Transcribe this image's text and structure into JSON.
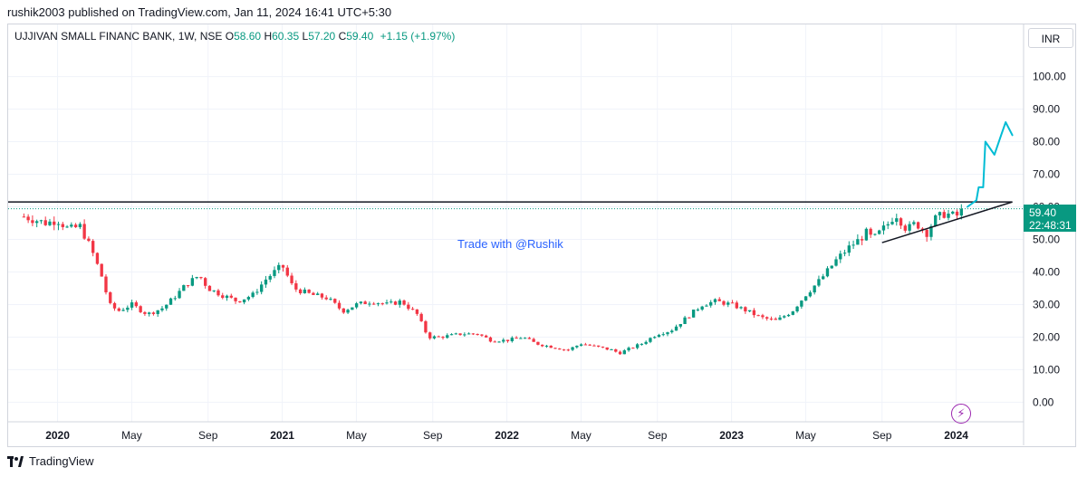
{
  "caption": "rushik2003 published on TradingView.com, Jan 11, 2024 16:41 UTC+5:30",
  "legend": {
    "symbol": "UJJIVAN SMALL FINANC BANK, 1W, NSE",
    "o_label": "O",
    "o_value": "58.60",
    "h_label": "H",
    "h_value": "60.35",
    "l_label": "L",
    "l_value": "57.20",
    "c_label": "C",
    "c_value": "59.40",
    "change": "+1.15 (+1.97%)"
  },
  "currency": "INR",
  "price_label": {
    "price": "59.40",
    "countdown": "22:48:31"
  },
  "watermark": "Trade with @Rushik",
  "footer": {
    "brand": "TradingView"
  },
  "colors": {
    "up": "#089981",
    "down": "#f23645",
    "drawing": "#00bcd4",
    "accent": "#9c27b0"
  },
  "icons": {
    "footer_logo": "tradingview-logo-icon",
    "alert_button": "lightning-bolt-icon"
  },
  "chart_data": {
    "type": "candlestick",
    "y_ticks": [
      "100.00",
      "90.00",
      "80.00",
      "70.00",
      "60.00",
      "50.00",
      "40.00",
      "30.00",
      "20.00",
      "10.00",
      "0.00"
    ],
    "y_tick_values": [
      100,
      90,
      80,
      70,
      60,
      50,
      40,
      30,
      20,
      10,
      0
    ],
    "ylim": [
      -6,
      116
    ],
    "x_ticks": [
      {
        "label": "2020",
        "year": true,
        "t": 2020.0
      },
      {
        "label": "May",
        "year": false,
        "t": 2020.33
      },
      {
        "label": "Sep",
        "year": false,
        "t": 2020.67
      },
      {
        "label": "2021",
        "year": true,
        "t": 2021.0
      },
      {
        "label": "May",
        "year": false,
        "t": 2021.33
      },
      {
        "label": "Sep",
        "year": false,
        "t": 2021.67
      },
      {
        "label": "2022",
        "year": true,
        "t": 2022.0
      },
      {
        "label": "May",
        "year": false,
        "t": 2022.33
      },
      {
        "label": "Sep",
        "year": false,
        "t": 2022.67
      },
      {
        "label": "2023",
        "year": true,
        "t": 2023.0
      },
      {
        "label": "May",
        "year": false,
        "t": 2023.33
      },
      {
        "label": "Sep",
        "year": false,
        "t": 2023.67
      },
      {
        "label": "2024",
        "year": true,
        "t": 2024.0
      }
    ],
    "xlim": [
      2019.78,
      2024.3
    ],
    "last_close": 59.4,
    "close_series": [
      [
        2019.85,
        57
      ],
      [
        2019.9,
        56
      ],
      [
        2019.95,
        55
      ],
      [
        2020.0,
        56
      ],
      [
        2020.05,
        53
      ],
      [
        2020.1,
        54
      ],
      [
        2020.15,
        47
      ],
      [
        2020.2,
        38
      ],
      [
        2020.23,
        30
      ],
      [
        2020.27,
        28
      ],
      [
        2020.33,
        30
      ],
      [
        2020.4,
        27
      ],
      [
        2020.47,
        29
      ],
      [
        2020.53,
        33
      ],
      [
        2020.57,
        36
      ],
      [
        2020.63,
        39
      ],
      [
        2020.67,
        35
      ],
      [
        2020.73,
        33
      ],
      [
        2020.8,
        31
      ],
      [
        2020.87,
        33
      ],
      [
        2020.93,
        38
      ],
      [
        2021.0,
        42
      ],
      [
        2021.05,
        35
      ],
      [
        2021.13,
        33
      ],
      [
        2021.2,
        32
      ],
      [
        2021.27,
        28
      ],
      [
        2021.33,
        30
      ],
      [
        2021.4,
        31
      ],
      [
        2021.47,
        30
      ],
      [
        2021.53,
        31
      ],
      [
        2021.6,
        27
      ],
      [
        2021.65,
        20
      ],
      [
        2021.7,
        20
      ],
      [
        2021.8,
        21
      ],
      [
        2021.87,
        21
      ],
      [
        2021.93,
        19
      ],
      [
        2022.0,
        19
      ],
      [
        2022.07,
        20
      ],
      [
        2022.13,
        18
      ],
      [
        2022.2,
        17
      ],
      [
        2022.27,
        16
      ],
      [
        2022.33,
        18
      ],
      [
        2022.4,
        17
      ],
      [
        2022.47,
        16
      ],
      [
        2022.5,
        15
      ],
      [
        2022.53,
        16
      ],
      [
        2022.6,
        18
      ],
      [
        2022.67,
        21
      ],
      [
        2022.73,
        22
      ],
      [
        2022.8,
        26
      ],
      [
        2022.87,
        30
      ],
      [
        2022.93,
        31
      ],
      [
        2023.0,
        30
      ],
      [
        2023.07,
        28
      ],
      [
        2023.13,
        26
      ],
      [
        2023.2,
        25
      ],
      [
        2023.27,
        28
      ],
      [
        2023.33,
        33
      ],
      [
        2023.4,
        38
      ],
      [
        2023.47,
        44
      ],
      [
        2023.53,
        48
      ],
      [
        2023.57,
        50
      ],
      [
        2023.6,
        52
      ],
      [
        2023.63,
        50
      ],
      [
        2023.7,
        55
      ],
      [
        2023.73,
        58
      ],
      [
        2023.78,
        53
      ],
      [
        2023.82,
        55
      ],
      [
        2023.87,
        52
      ],
      [
        2023.9,
        56
      ],
      [
        2023.95,
        58
      ],
      [
        2024.0,
        57
      ],
      [
        2024.03,
        59.4
      ]
    ],
    "resistance_level": 61.5,
    "support_trendline": [
      [
        2023.67,
        49
      ],
      [
        2024.25,
        61.5
      ]
    ],
    "annotation_path": [
      [
        2024.05,
        60
      ],
      [
        2024.09,
        62
      ],
      [
        2024.1,
        66
      ],
      [
        2024.12,
        66
      ],
      [
        2024.13,
        80
      ],
      [
        2024.17,
        76
      ],
      [
        2024.2,
        82
      ],
      [
        2024.22,
        86
      ],
      [
        2024.25,
        82
      ]
    ]
  }
}
